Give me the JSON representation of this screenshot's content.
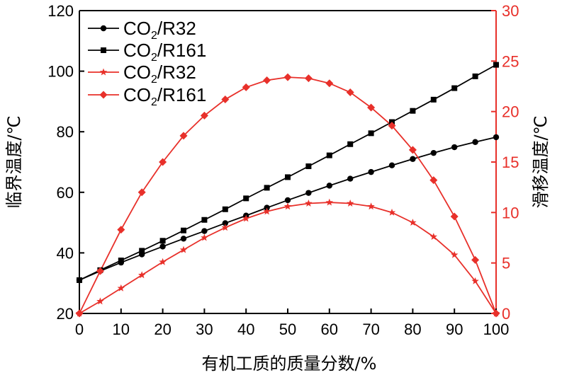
{
  "chart_data": {
    "type": "line",
    "xlabel": "有机工质的质量分数/%",
    "ylabel_left": "临界温度/℃",
    "ylabel_right": "滑移温度/℃",
    "xlim": [
      0,
      100
    ],
    "ylim_left": [
      20,
      120
    ],
    "ylim_right": [
      0,
      30
    ],
    "x_ticks": [
      0,
      10,
      20,
      30,
      40,
      50,
      60,
      70,
      80,
      90,
      100
    ],
    "y_left_ticks": [
      20,
      40,
      60,
      80,
      100,
      120
    ],
    "y_right_ticks": [
      0,
      5,
      10,
      15,
      20,
      25,
      30
    ],
    "colors": {
      "black": "#000000",
      "red": "#e8302a"
    },
    "series": [
      {
        "name": "CO",
        "sub": "2",
        "suffix": "/R32",
        "axis": "left",
        "color": "#000000",
        "marker": "circle",
        "x": [
          0,
          5,
          10,
          15,
          20,
          25,
          30,
          35,
          40,
          45,
          50,
          55,
          60,
          65,
          70,
          75,
          80,
          85,
          90,
          95,
          100
        ],
        "values": [
          31.0,
          34.0,
          36.8,
          39.5,
          42.1,
          44.7,
          47.2,
          49.8,
          52.3,
          54.9,
          57.4,
          59.8,
          62.2,
          64.5,
          66.7,
          68.9,
          71.0,
          73.0,
          74.9,
          76.6,
          78.2
        ]
      },
      {
        "name": "CO",
        "sub": "2",
        "suffix": "/R161",
        "axis": "left",
        "color": "#000000",
        "marker": "square",
        "x": [
          0,
          5,
          10,
          15,
          20,
          25,
          30,
          35,
          40,
          45,
          50,
          55,
          60,
          65,
          70,
          75,
          80,
          85,
          90,
          95,
          100
        ],
        "values": [
          31.0,
          34.3,
          37.5,
          40.7,
          44.0,
          47.4,
          50.9,
          54.4,
          58.0,
          61.5,
          65.0,
          68.6,
          72.2,
          75.9,
          79.5,
          83.2,
          86.9,
          90.6,
          94.4,
          98.3,
          102.1
        ]
      },
      {
        "name": "CO",
        "sub": "2",
        "suffix": "/R32",
        "axis": "right",
        "color": "#e8302a",
        "marker": "star",
        "x": [
          0,
          5,
          10,
          15,
          20,
          25,
          30,
          35,
          40,
          45,
          50,
          55,
          60,
          65,
          70,
          75,
          80,
          85,
          90,
          95,
          100
        ],
        "values": [
          0.0,
          1.2,
          2.5,
          3.8,
          5.1,
          6.3,
          7.5,
          8.5,
          9.4,
          10.1,
          10.6,
          10.9,
          11.0,
          10.9,
          10.6,
          10.0,
          9.0,
          7.6,
          5.8,
          3.2,
          0.0
        ]
      },
      {
        "name": "CO",
        "sub": "2",
        "suffix": "/R161",
        "axis": "right",
        "color": "#e8302a",
        "marker": "diamond",
        "x": [
          0,
          5,
          10,
          15,
          20,
          25,
          30,
          35,
          40,
          45,
          50,
          55,
          60,
          65,
          70,
          75,
          80,
          85,
          90,
          95,
          100
        ],
        "values": [
          0.0,
          4.2,
          8.3,
          12.0,
          15.0,
          17.6,
          19.6,
          21.2,
          22.4,
          23.1,
          23.4,
          23.3,
          22.8,
          21.9,
          20.4,
          18.6,
          16.2,
          13.2,
          9.6,
          5.3,
          0.0
        ]
      }
    ]
  }
}
